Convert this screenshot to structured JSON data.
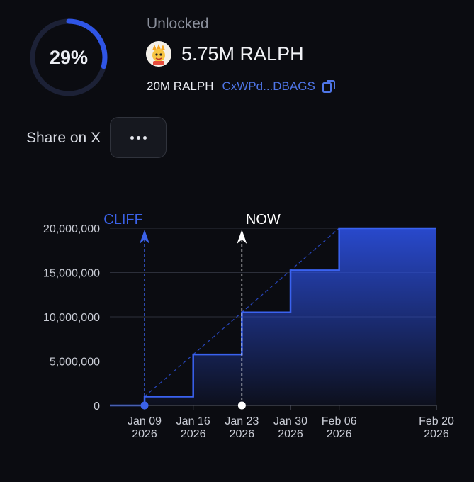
{
  "progress": {
    "percent_label": "29%",
    "fraction": 0.29
  },
  "unlocked": {
    "label": "Unlocked",
    "amount": "5.75M RALPH",
    "total": "20M RALPH",
    "address": "CxWPd...DBAGS"
  },
  "share": {
    "label": "Share on X"
  },
  "icons": {
    "copy": "copy-icon",
    "more": "more-dots-icon",
    "avatar": "token-avatar-icon"
  },
  "colors": {
    "accent": "#2f55e6",
    "ring_track": "#1c2136",
    "link": "#4f76e8",
    "now_marker": "#ffffff",
    "grid": "#2c2f3a"
  },
  "chart_data": {
    "type": "area",
    "step": true,
    "ylim": [
      0,
      20000000
    ],
    "y_ticks": [
      {
        "value": 0,
        "label": "0"
      },
      {
        "value": 5000000,
        "label": "5,000,000"
      },
      {
        "value": 10000000,
        "label": "10,000,000"
      },
      {
        "value": 15000000,
        "label": "15,000,000"
      },
      {
        "value": 20000000,
        "label": "20,000,000"
      }
    ],
    "x_range": [
      "2026-01-04",
      "2026-02-20"
    ],
    "x_ticks": [
      {
        "date": "2026-01-09",
        "label": "Jan 09",
        "year": "2026"
      },
      {
        "date": "2026-01-16",
        "label": "Jan 16",
        "year": "2026"
      },
      {
        "date": "2026-01-23",
        "label": "Jan 23",
        "year": "2026"
      },
      {
        "date": "2026-01-30",
        "label": "Jan 30",
        "year": "2026"
      },
      {
        "date": "2026-02-06",
        "label": "Feb 06",
        "year": "2026"
      },
      {
        "date": "2026-02-20",
        "label": "Feb 20",
        "year": "2026"
      }
    ],
    "series": [
      {
        "values": [
          {
            "date": "2026-01-04",
            "value": 0
          },
          {
            "date": "2026-01-09",
            "value": 1000000
          },
          {
            "date": "2026-01-16",
            "value": 5750000
          },
          {
            "date": "2026-01-23",
            "value": 10500000
          },
          {
            "date": "2026-01-30",
            "value": 15250000
          },
          {
            "date": "2026-02-06",
            "value": 20000000
          },
          {
            "date": "2026-02-20",
            "value": 20000000
          }
        ]
      }
    ],
    "linear_reference": {
      "from": {
        "date": "2026-01-09",
        "value": 1000000
      },
      "to": {
        "date": "2026-02-06",
        "value": 20000000
      }
    },
    "markers": [
      {
        "label": "CLIFF",
        "date": "2026-01-09",
        "color": "#3b62e8"
      },
      {
        "label": "NOW",
        "date": "2026-01-23",
        "color": "#ffffff"
      }
    ]
  }
}
